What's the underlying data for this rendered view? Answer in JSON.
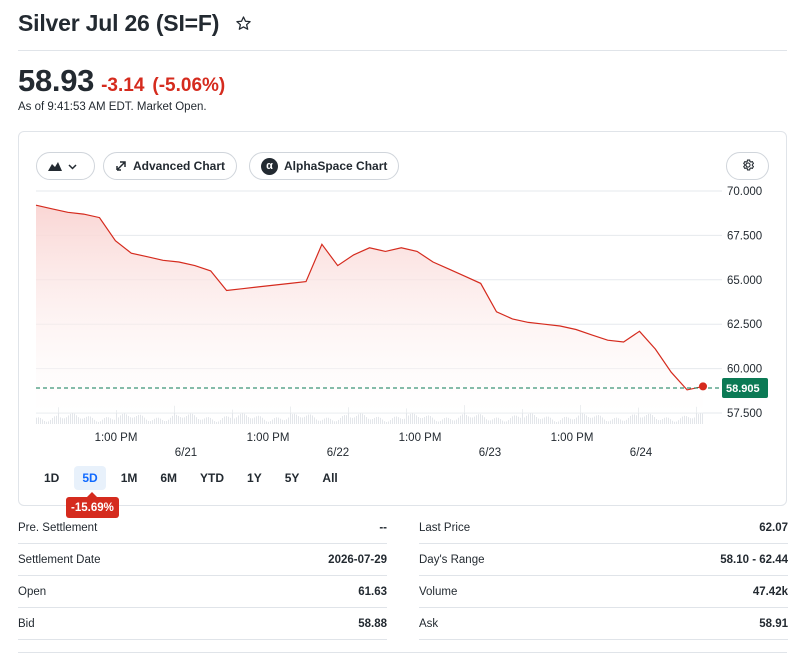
{
  "header": {
    "title": "Silver Jul 26 (SI=F)",
    "star_icon": "star-outline-icon"
  },
  "quote": {
    "price": "58.93",
    "change": "-3.14",
    "change_percent": "(-5.06%)",
    "as_of": "As of 9:41:53 AM EDT. Market Open.",
    "colors": {
      "down": "#d52b1e",
      "text": "#232a31"
    }
  },
  "toolbar": {
    "chart_type_icon": "mountain-chart-icon",
    "advanced_chart_label": "Advanced Chart",
    "alphaspace_label": "AlphaSpace Chart",
    "alphaspace_glyph": "α",
    "settings_icon": "gear-icon"
  },
  "chart_data": {
    "type": "area",
    "y_ticks": [
      "70.000",
      "67.500",
      "65.000",
      "62.500",
      "60.000",
      "57.500"
    ],
    "ylim": [
      57.5,
      70.0
    ],
    "x_time_labels": [
      "1:00 PM",
      "1:00 PM",
      "1:00 PM",
      "1:00 PM"
    ],
    "x_date_labels": [
      "6/21",
      "6/22",
      "6/23",
      "6/24"
    ],
    "previous_close_line": 58.905,
    "current_value_label": "58.905",
    "series": [
      {
        "values": [
          69.2,
          69.0,
          68.8,
          68.7,
          68.5,
          67.2,
          66.5,
          66.3,
          66.1,
          66.0,
          65.8,
          65.5,
          64.4,
          64.5,
          64.6,
          64.7,
          64.8,
          64.9,
          67.0,
          65.8,
          66.4,
          66.8,
          66.6,
          66.8,
          66.6,
          66.0,
          65.6,
          65.2,
          64.8,
          63.2,
          62.8,
          62.6,
          62.5,
          62.4,
          62.2,
          61.9,
          61.6,
          61.5,
          62.1,
          61.1,
          59.8,
          58.8,
          59.0
        ]
      }
    ],
    "colors": {
      "line": "#d52b1e",
      "fill_top": "#f9d4d2",
      "fill_bottom": "#ffffff",
      "badge": "#0b7a55",
      "prev_close": "#0b7a55"
    }
  },
  "range": {
    "tabs": [
      "1D",
      "5D",
      "1M",
      "6M",
      "YTD",
      "1Y",
      "5Y",
      "All"
    ],
    "active": "5D",
    "performance_badge": "-15.69%"
  },
  "stats": {
    "left": [
      {
        "label": "Pre. Settlement",
        "value": "--"
      },
      {
        "label": "Settlement Date",
        "value": "2026-07-29"
      },
      {
        "label": "Open",
        "value": "61.63"
      },
      {
        "label": "Bid",
        "value": "58.88"
      }
    ],
    "right": [
      {
        "label": "Last Price",
        "value": "62.07"
      },
      {
        "label": "Day's Range",
        "value": "58.10 - 62.44"
      },
      {
        "label": "Volume",
        "value": "47.42k"
      },
      {
        "label": "Ask",
        "value": "58.91"
      }
    ]
  }
}
